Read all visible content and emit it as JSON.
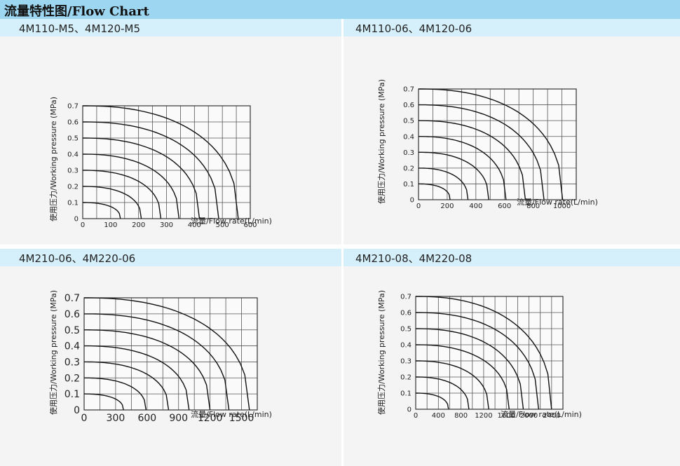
{
  "header": {
    "title": "流量特性图/Flow Chart"
  },
  "charts": [
    {
      "panel_title": "4M110-M5、4M120-M5",
      "chart_data": {
        "type": "line",
        "xlabel": "流量/Flow rate(L/min)",
        "ylabel": "使用压力/Working pressure  (MPa)",
        "xlim": [
          0,
          600
        ],
        "ylim": [
          0,
          0.7
        ],
        "xticks": [
          0,
          100,
          200,
          300,
          400,
          500,
          600
        ],
        "yticks": [
          0,
          0.1,
          0.2,
          0.3,
          0.4,
          0.5,
          0.6,
          0.7
        ],
        "grid": true,
        "series": [
          {
            "p0": 0.1,
            "xmax": 135
          },
          {
            "p0": 0.2,
            "xmax": 210
          },
          {
            "p0": 0.3,
            "xmax": 280
          },
          {
            "p0": 0.4,
            "xmax": 345
          },
          {
            "p0": 0.5,
            "xmax": 418
          },
          {
            "p0": 0.6,
            "xmax": 487
          },
          {
            "p0": 0.7,
            "xmax": 557
          }
        ]
      }
    },
    {
      "panel_title": "4M110-06、4M120-06",
      "chart_data": {
        "type": "line",
        "xlabel": "流量/Flow rate(L/min)",
        "ylabel": "使用压力/Working pressure  (MPa)",
        "xlim": [
          0,
          1100
        ],
        "ylim": [
          0,
          0.7
        ],
        "xticks": [
          0,
          200,
          400,
          600,
          800,
          1000
        ],
        "yticks": [
          0,
          0.1,
          0.2,
          0.3,
          0.4,
          0.5,
          0.6,
          0.7
        ],
        "grid": true,
        "series": [
          {
            "p0": 0.1,
            "xmax": 220
          },
          {
            "p0": 0.2,
            "xmax": 345
          },
          {
            "p0": 0.3,
            "xmax": 490
          },
          {
            "p0": 0.4,
            "xmax": 610
          },
          {
            "p0": 0.5,
            "xmax": 745
          },
          {
            "p0": 0.6,
            "xmax": 875
          },
          {
            "p0": 0.7,
            "xmax": 1005
          }
        ]
      }
    },
    {
      "panel_title": "4M210-06、4M220-06",
      "chart_data": {
        "type": "line",
        "xlabel": "流量/Flow rate(L/min)",
        "ylabel": "使用压力/Working pressure  (MPa)",
        "xlim": [
          0,
          1650
        ],
        "ylim": [
          0,
          0.7
        ],
        "xticks": [
          0,
          300,
          600,
          900,
          1200,
          1500
        ],
        "yticks": [
          0,
          0.1,
          0.2,
          0.3,
          0.4,
          0.5,
          0.6,
          0.7
        ],
        "grid": true,
        "series": [
          {
            "p0": 0.1,
            "xmax": 375
          },
          {
            "p0": 0.2,
            "xmax": 590
          },
          {
            "p0": 0.3,
            "xmax": 805
          },
          {
            "p0": 0.4,
            "xmax": 1000
          },
          {
            "p0": 0.5,
            "xmax": 1200
          },
          {
            "p0": 0.6,
            "xmax": 1380
          },
          {
            "p0": 0.7,
            "xmax": 1575
          }
        ]
      }
    },
    {
      "panel_title": "4M210-08、4M220-08",
      "chart_data": {
        "type": "line",
        "xlabel": "流量/Flow rate(L/min)",
        "ylabel": "使用压力/Working pressure  (MPa)",
        "xlim": [
          0,
          2600
        ],
        "ylim": [
          0,
          0.7
        ],
        "xticks": [
          0,
          400,
          800,
          1200,
          1600,
          2000,
          2400
        ],
        "yticks": [
          0,
          0.1,
          0.2,
          0.3,
          0.4,
          0.5,
          0.6,
          0.7
        ],
        "grid": true,
        "series": [
          {
            "p0": 0.1,
            "xmax": 580
          },
          {
            "p0": 0.2,
            "xmax": 940
          },
          {
            "p0": 0.3,
            "xmax": 1290
          },
          {
            "p0": 0.4,
            "xmax": 1650
          },
          {
            "p0": 0.5,
            "xmax": 1900
          },
          {
            "p0": 0.6,
            "xmax": 2170
          },
          {
            "p0": 0.7,
            "xmax": 2400
          }
        ]
      }
    }
  ]
}
